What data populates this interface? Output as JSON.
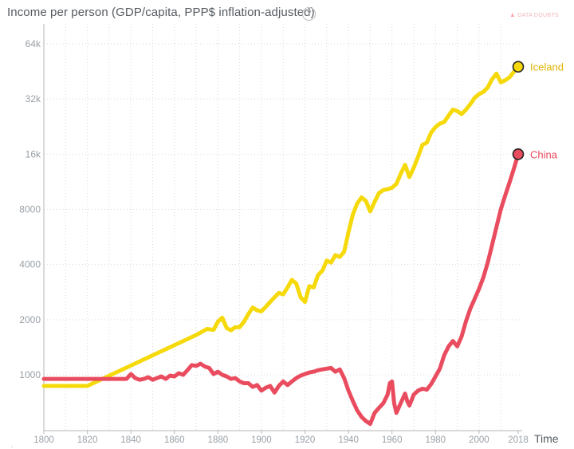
{
  "header": {
    "title": "Income per person (GDP/capita, PPP$ inflation-adjusted)",
    "help_icon": "?",
    "data_doubts_label": "DATA DOUBTS"
  },
  "chart_data": {
    "type": "line",
    "title": "Income per person (GDP/capita, PPP$ inflation-adjusted)",
    "xlabel": "Time",
    "ylabel": "",
    "yscale": "log",
    "xlim": [
      1800,
      2018
    ],
    "ylim": [
      500,
      80000
    ],
    "x_ticks": [
      1800,
      1820,
      1840,
      1860,
      1880,
      1900,
      1920,
      1940,
      1960,
      1980,
      2000,
      2018
    ],
    "y_ticks": [
      {
        "value": 1000,
        "label": "1000"
      },
      {
        "value": 2000,
        "label": "2000"
      },
      {
        "value": 4000,
        "label": "4000"
      },
      {
        "value": 8000,
        "label": "8000"
      },
      {
        "value": 16000,
        "label": "16k"
      },
      {
        "value": 32000,
        "label": "32k"
      },
      {
        "value": 64000,
        "label": "64k"
      }
    ],
    "grid": true,
    "series": [
      {
        "name": "Iceland",
        "color": "#f5d90a",
        "points": [
          [
            1800,
            870
          ],
          [
            1820,
            870
          ],
          [
            1870,
            1650
          ],
          [
            1875,
            1780
          ],
          [
            1878,
            1760
          ],
          [
            1880,
            1950
          ],
          [
            1882,
            2050
          ],
          [
            1884,
            1800
          ],
          [
            1886,
            1750
          ],
          [
            1888,
            1820
          ],
          [
            1890,
            1820
          ],
          [
            1892,
            1950
          ],
          [
            1894,
            2150
          ],
          [
            1896,
            2330
          ],
          [
            1898,
            2250
          ],
          [
            1900,
            2220
          ],
          [
            1902,
            2350
          ],
          [
            1904,
            2500
          ],
          [
            1906,
            2650
          ],
          [
            1908,
            2800
          ],
          [
            1910,
            2750
          ],
          [
            1912,
            3000
          ],
          [
            1914,
            3300
          ],
          [
            1916,
            3150
          ],
          [
            1918,
            2650
          ],
          [
            1920,
            2500
          ],
          [
            1922,
            3050
          ],
          [
            1924,
            3000
          ],
          [
            1926,
            3500
          ],
          [
            1928,
            3700
          ],
          [
            1930,
            4200
          ],
          [
            1932,
            4100
          ],
          [
            1934,
            4500
          ],
          [
            1936,
            4400
          ],
          [
            1938,
            4700
          ],
          [
            1940,
            6000
          ],
          [
            1942,
            7500
          ],
          [
            1944,
            8600
          ],
          [
            1946,
            9300
          ],
          [
            1948,
            8900
          ],
          [
            1950,
            7800
          ],
          [
            1952,
            8800
          ],
          [
            1954,
            9800
          ],
          [
            1956,
            10200
          ],
          [
            1958,
            10300
          ],
          [
            1960,
            10500
          ],
          [
            1962,
            11000
          ],
          [
            1964,
            12500
          ],
          [
            1966,
            14000
          ],
          [
            1968,
            12000
          ],
          [
            1970,
            13500
          ],
          [
            1972,
            15500
          ],
          [
            1974,
            18000
          ],
          [
            1976,
            18500
          ],
          [
            1978,
            21000
          ],
          [
            1980,
            22500
          ],
          [
            1982,
            23500
          ],
          [
            1984,
            24000
          ],
          [
            1986,
            26000
          ],
          [
            1988,
            28000
          ],
          [
            1990,
            27500
          ],
          [
            1992,
            26500
          ],
          [
            1994,
            28000
          ],
          [
            1996,
            30000
          ],
          [
            1998,
            32500
          ],
          [
            2000,
            34000
          ],
          [
            2002,
            35000
          ],
          [
            2004,
            37000
          ],
          [
            2006,
            41000
          ],
          [
            2008,
            44000
          ],
          [
            2010,
            39500
          ],
          [
            2012,
            40500
          ],
          [
            2014,
            42000
          ],
          [
            2016,
            45000
          ],
          [
            2018,
            48000
          ]
        ]
      },
      {
        "name": "China",
        "color": "#ea4c5f",
        "points": [
          [
            1800,
            950
          ],
          [
            1838,
            950
          ],
          [
            1840,
            1010
          ],
          [
            1842,
            960
          ],
          [
            1844,
            940
          ],
          [
            1846,
            950
          ],
          [
            1848,
            970
          ],
          [
            1850,
            940
          ],
          [
            1852,
            960
          ],
          [
            1854,
            980
          ],
          [
            1856,
            950
          ],
          [
            1858,
            990
          ],
          [
            1860,
            980
          ],
          [
            1862,
            1020
          ],
          [
            1864,
            1000
          ],
          [
            1866,
            1060
          ],
          [
            1868,
            1130
          ],
          [
            1870,
            1120
          ],
          [
            1872,
            1150
          ],
          [
            1874,
            1110
          ],
          [
            1876,
            1090
          ],
          [
            1878,
            1010
          ],
          [
            1880,
            1040
          ],
          [
            1882,
            1000
          ],
          [
            1884,
            980
          ],
          [
            1886,
            950
          ],
          [
            1888,
            960
          ],
          [
            1890,
            920
          ],
          [
            1892,
            900
          ],
          [
            1894,
            900
          ],
          [
            1896,
            860
          ],
          [
            1898,
            880
          ],
          [
            1900,
            820
          ],
          [
            1902,
            850
          ],
          [
            1904,
            870
          ],
          [
            1906,
            800
          ],
          [
            1908,
            870
          ],
          [
            1910,
            920
          ],
          [
            1912,
            880
          ],
          [
            1914,
            920
          ],
          [
            1916,
            960
          ],
          [
            1918,
            990
          ],
          [
            1920,
            1010
          ],
          [
            1922,
            1030
          ],
          [
            1924,
            1040
          ],
          [
            1926,
            1060
          ],
          [
            1928,
            1070
          ],
          [
            1930,
            1080
          ],
          [
            1932,
            1090
          ],
          [
            1934,
            1040
          ],
          [
            1936,
            1070
          ],
          [
            1938,
            960
          ],
          [
            1940,
            820
          ],
          [
            1942,
            720
          ],
          [
            1944,
            640
          ],
          [
            1946,
            590
          ],
          [
            1948,
            560
          ],
          [
            1950,
            540
          ],
          [
            1952,
            620
          ],
          [
            1954,
            660
          ],
          [
            1956,
            700
          ],
          [
            1958,
            780
          ],
          [
            1959,
            900
          ],
          [
            1960,
            920
          ],
          [
            1961,
            700
          ],
          [
            1962,
            620
          ],
          [
            1964,
            700
          ],
          [
            1966,
            790
          ],
          [
            1967,
            720
          ],
          [
            1968,
            680
          ],
          [
            1970,
            780
          ],
          [
            1972,
            820
          ],
          [
            1974,
            840
          ],
          [
            1976,
            830
          ],
          [
            1978,
            890
          ],
          [
            1980,
            980
          ],
          [
            1982,
            1080
          ],
          [
            1984,
            1280
          ],
          [
            1986,
            1430
          ],
          [
            1988,
            1530
          ],
          [
            1990,
            1430
          ],
          [
            1992,
            1620
          ],
          [
            1994,
            1960
          ],
          [
            1996,
            2300
          ],
          [
            1998,
            2600
          ],
          [
            2000,
            2950
          ],
          [
            2002,
            3400
          ],
          [
            2004,
            4100
          ],
          [
            2006,
            5100
          ],
          [
            2008,
            6400
          ],
          [
            2010,
            8000
          ],
          [
            2012,
            9500
          ],
          [
            2014,
            11200
          ],
          [
            2016,
            13300
          ],
          [
            2018,
            16000
          ]
        ]
      }
    ]
  }
}
